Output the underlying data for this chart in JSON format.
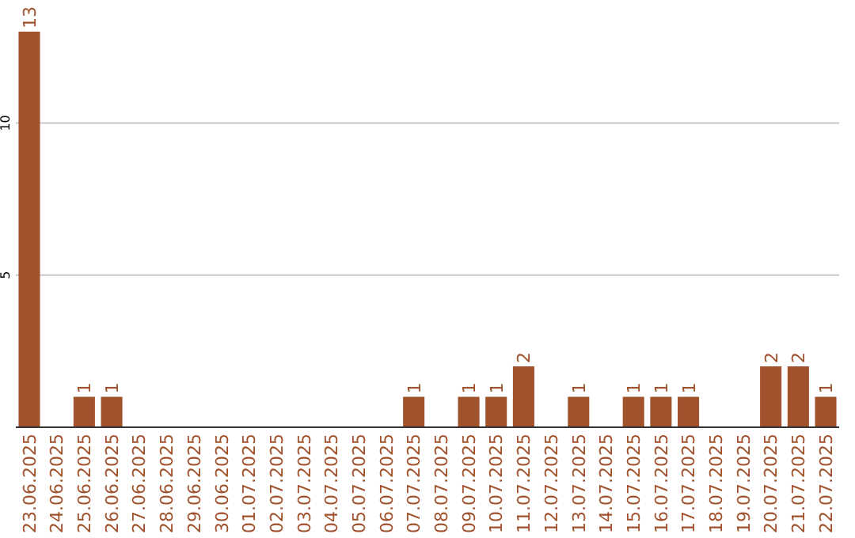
{
  "chart_data": {
    "type": "bar",
    "categories": [
      "23.06.2025",
      "24.06.2025",
      "25.06.2025",
      "26.06.2025",
      "27.06.2025",
      "28.06.2025",
      "29.06.2025",
      "30.06.2025",
      "01.07.2025",
      "02.07.2025",
      "03.07.2025",
      "04.07.2025",
      "05.07.2025",
      "06.07.2025",
      "07.07.2025",
      "08.07.2025",
      "09.07.2025",
      "10.07.2025",
      "11.07.2025",
      "12.07.2025",
      "13.07.2025",
      "14.07.2025",
      "15.07.2025",
      "16.07.2025",
      "17.07.2025",
      "18.07.2025",
      "19.07.2025",
      "20.07.2025",
      "21.07.2025",
      "22.07.2025"
    ],
    "values": [
      13,
      0,
      1,
      1,
      0,
      0,
      0,
      0,
      0,
      0,
      0,
      0,
      0,
      0,
      1,
      0,
      1,
      1,
      2,
      0,
      1,
      0,
      1,
      1,
      1,
      0,
      0,
      2,
      2,
      1
    ],
    "value_labels": [
      "13",
      null,
      "1",
      "1",
      null,
      null,
      null,
      null,
      null,
      null,
      null,
      null,
      null,
      null,
      "1",
      null,
      "1",
      "1",
      "2",
      null,
      "1",
      null,
      "1",
      "1",
      "1",
      null,
      null,
      "2",
      "2",
      "1"
    ],
    "color": "#a0522d",
    "ylim": [
      0,
      13
    ],
    "yticks": [
      5,
      10
    ],
    "grid": "y"
  }
}
